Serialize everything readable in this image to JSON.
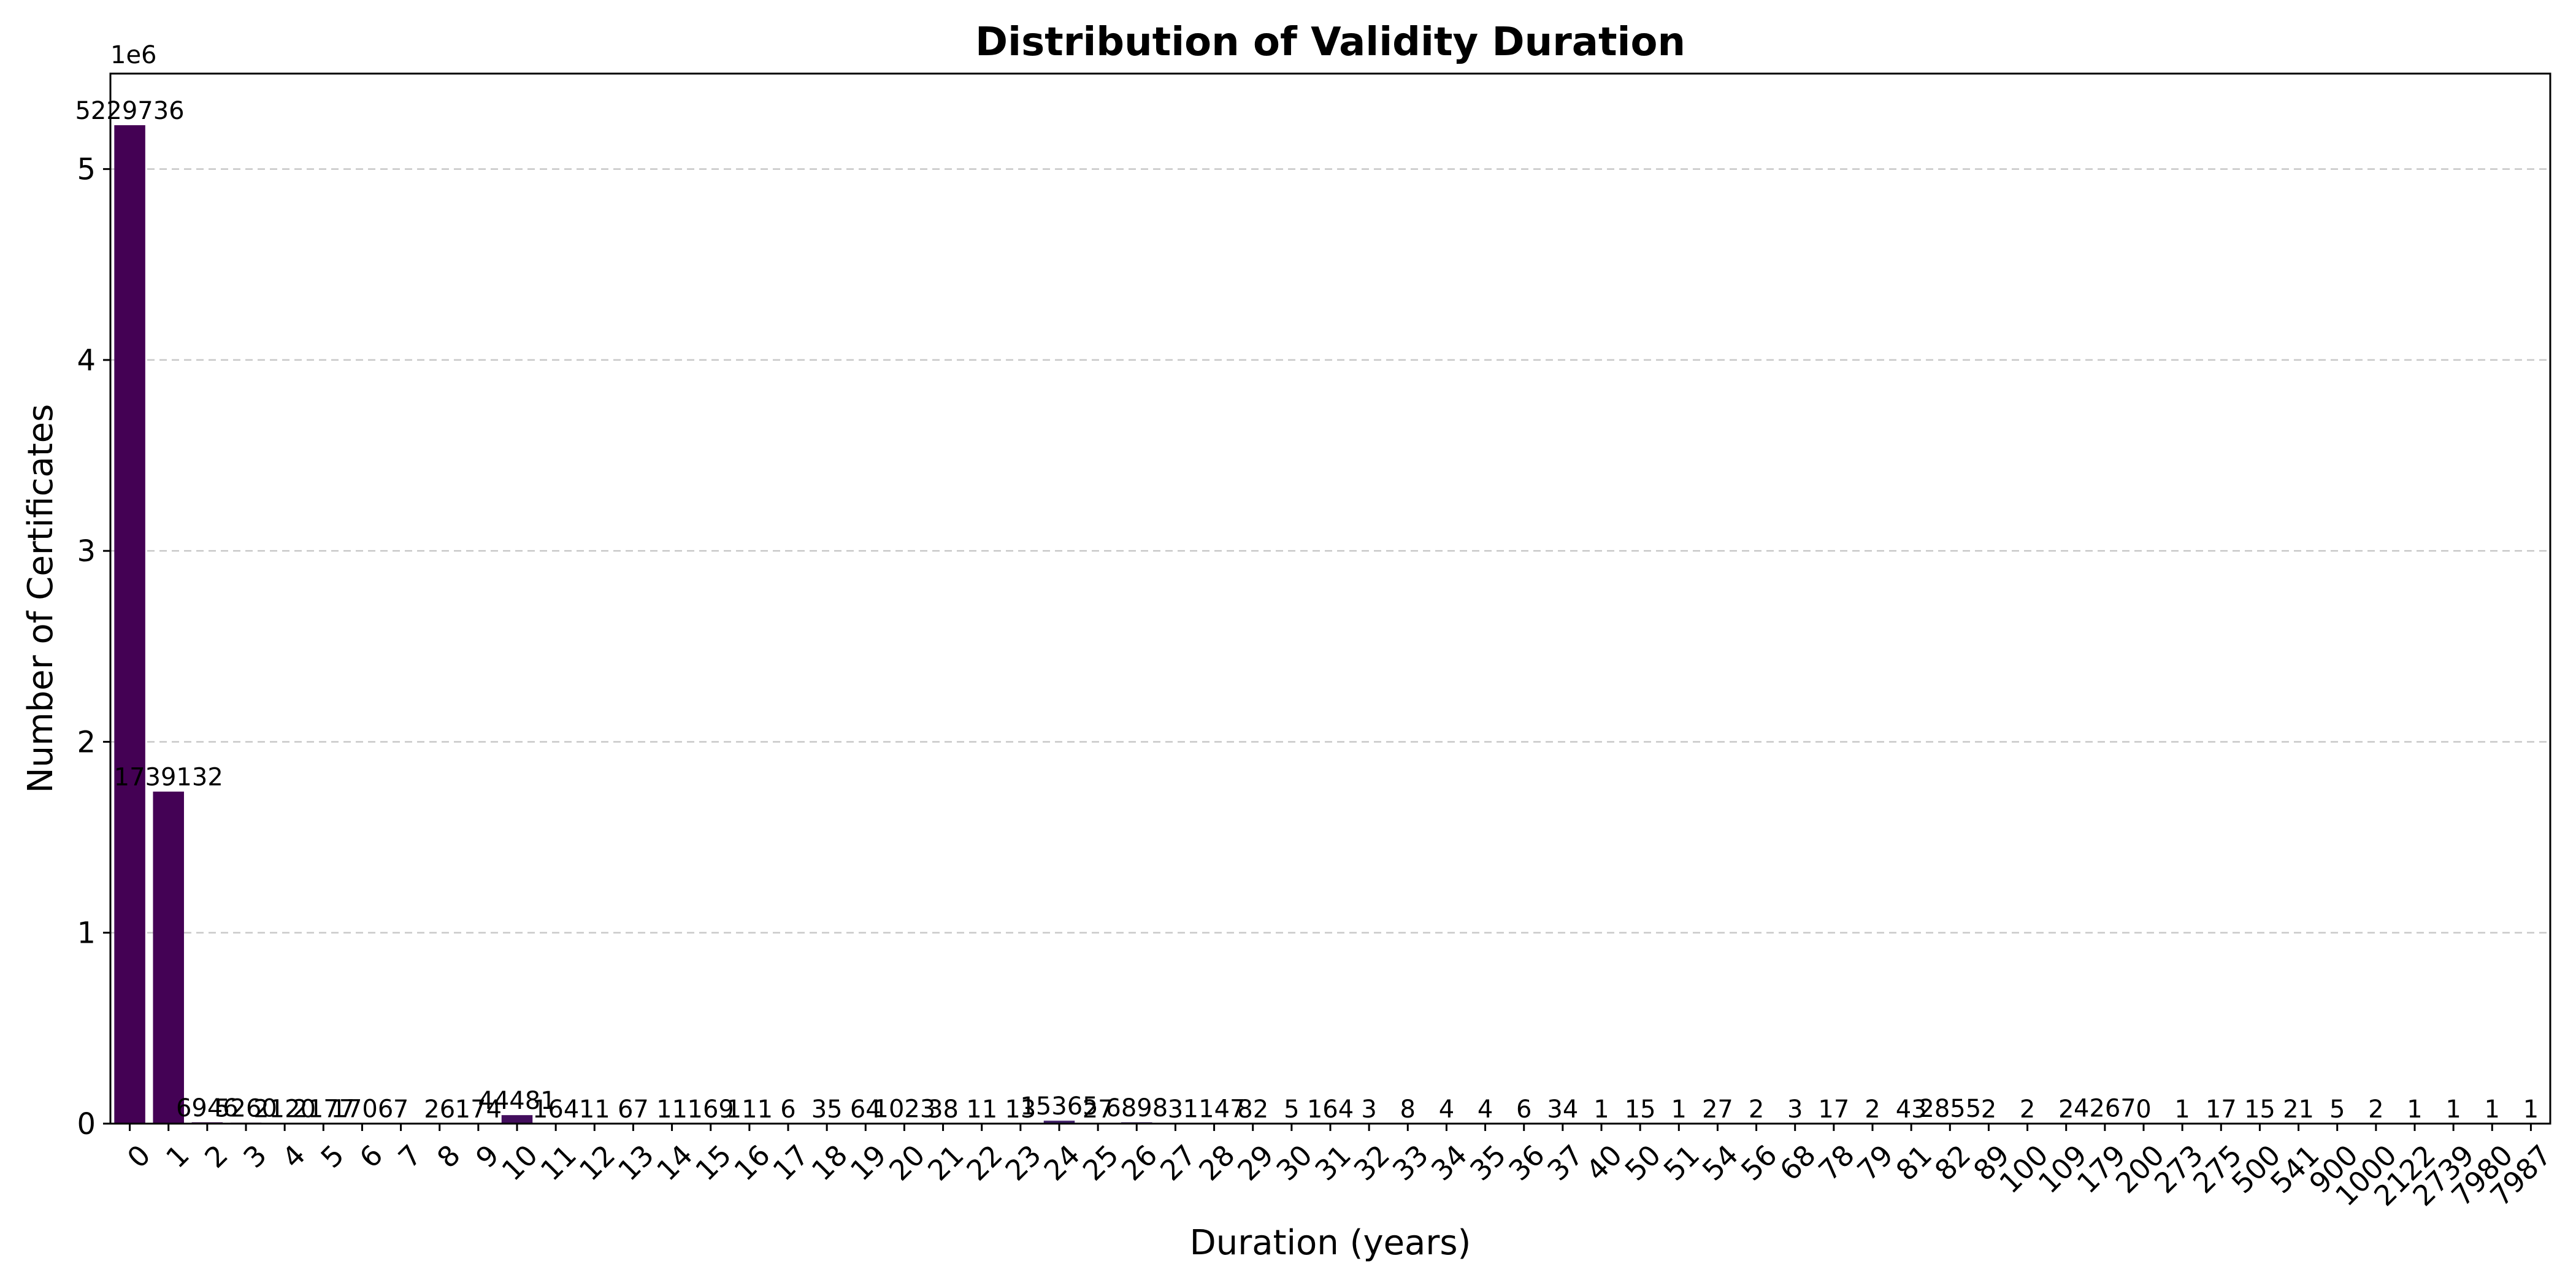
{
  "chart_data": {
    "type": "bar",
    "title": "Distribution of Validity Duration",
    "xlabel": "Duration (years)",
    "ylabel": "Number of Certificates",
    "y_offset_label": "1e6",
    "y_tick_labels": [
      "0",
      "1",
      "2",
      "3",
      "4",
      "5"
    ],
    "ylim": [
      0,
      5500000
    ],
    "grid": "horizontal dashed",
    "colors": {
      "bar_start": "#440154",
      "bar_end": "#3b528b",
      "grid": "#c8c8c8"
    },
    "categories": [
      "0",
      "1",
      "2",
      "3",
      "4",
      "5",
      "6",
      "7",
      "8",
      "9",
      "10",
      "11",
      "12",
      "13",
      "14",
      "15",
      "16",
      "17",
      "18",
      "19",
      "20",
      "21",
      "22",
      "23",
      "24",
      "25",
      "26",
      "27",
      "28",
      "29",
      "30",
      "31",
      "32",
      "33",
      "34",
      "35",
      "36",
      "37",
      "40",
      "50",
      "51",
      "54",
      "56",
      "68",
      "78",
      "79",
      "81",
      "82",
      "89",
      "100",
      "109",
      "179",
      "200",
      "273",
      "275",
      "500",
      "541",
      "900",
      "1000",
      "2122",
      "2739",
      "7980",
      "7987"
    ],
    "values": [
      5229736,
      1739132,
      6946,
      5260,
      2120,
      2177,
      1706,
      7,
      26,
      174,
      44481,
      164,
      11,
      67,
      11,
      169,
      111,
      6,
      35,
      64,
      1023,
      38,
      11,
      13,
      15365,
      27,
      6898,
      3,
      1147,
      82,
      5,
      164,
      3,
      8,
      4,
      4,
      6,
      34,
      1,
      15,
      1,
      27,
      2,
      3,
      17,
      2,
      43,
      2855,
      2,
      2,
      2,
      4267,
      0,
      1,
      17,
      15,
      21,
      5,
      2,
      1,
      1,
      1,
      1
    ],
    "value_labels": [
      "5229736",
      "1739132",
      "6946",
      "5260",
      "2120",
      "2177",
      "1706",
      "7",
      "26",
      "174",
      "44481",
      "164",
      "11",
      "67",
      "11",
      "169",
      "111",
      "6",
      "35",
      "64",
      "1023",
      "38",
      "11",
      "13",
      "15365",
      "27",
      "6898",
      "3",
      "1147",
      "82",
      "5",
      "164",
      "3",
      "8",
      "4",
      "4",
      "6",
      "34",
      "1",
      "15",
      "1",
      "27",
      "2",
      "3",
      "17",
      "2",
      "43",
      "2855",
      "2",
      "2",
      "2",
      "4267",
      "0",
      "1",
      "17",
      "15",
      "21",
      "5",
      "2",
      "1",
      "1",
      "1",
      "1"
    ]
  }
}
